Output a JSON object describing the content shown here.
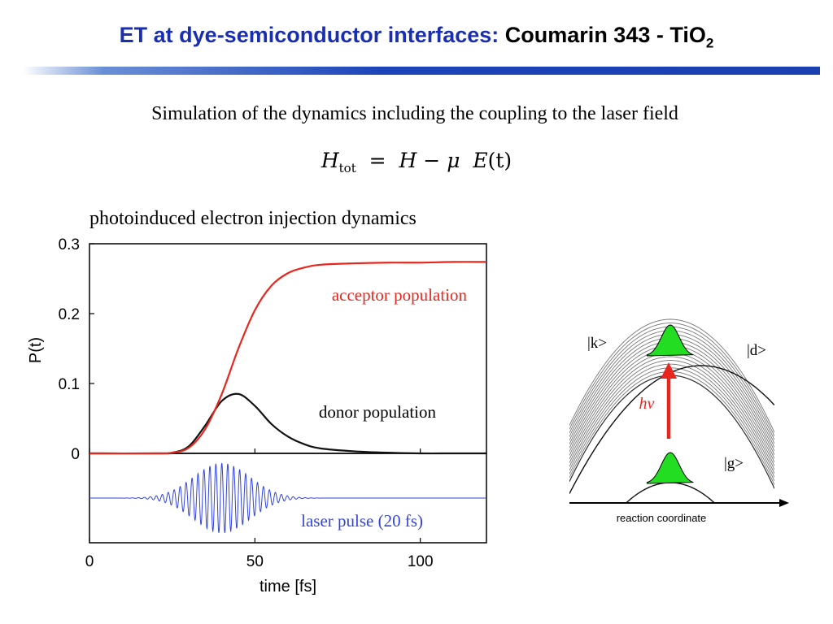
{
  "slide": {
    "title_part1": "ET at dye-semiconductor interfaces:",
    "title_part2": "Coumarin 343 - TiO",
    "title_sub": "2",
    "subtitle": "Simulation of the dynamics including the coupling to the laser field",
    "formula": {
      "lhs": "H",
      "lhs_sub": "tot",
      "equals": "=",
      "rhs_h": "H",
      "minus": "−",
      "mu": "μ",
      "field": "E",
      "arg": "(t)"
    },
    "plot_heading": "photoinduced electron injection dynamics"
  },
  "chart_data": [
    {
      "type": "line",
      "title": "photoinduced electron injection dynamics",
      "xlabel": "time [fs]",
      "ylabel": "P(t)",
      "xlim": [
        0,
        120
      ],
      "ylim": [
        0,
        0.3
      ],
      "x_ticks": [
        "0",
        "50",
        "100"
      ],
      "y_ticks": [
        "0",
        "0.1",
        "0.2",
        "0.3"
      ],
      "series": [
        {
          "name": "acceptor population",
          "color": "#e8261e",
          "x": [
            0,
            20,
            25,
            30,
            35,
            40,
            45,
            50,
            55,
            60,
            65,
            70,
            80,
            90,
            100,
            110,
            120
          ],
          "y": [
            0,
            0,
            0.001,
            0.008,
            0.035,
            0.085,
            0.15,
            0.205,
            0.24,
            0.258,
            0.266,
            0.27,
            0.272,
            0.273,
            0.273,
            0.274,
            0.274
          ]
        },
        {
          "name": "donor population",
          "color": "#111111",
          "x": [
            0,
            20,
            25,
            30,
            35,
            40,
            45,
            50,
            55,
            60,
            65,
            70,
            80,
            90,
            100,
            110,
            120
          ],
          "y": [
            0,
            0,
            0.001,
            0.01,
            0.04,
            0.075,
            0.085,
            0.068,
            0.042,
            0.024,
            0.013,
            0.007,
            0.003,
            0.001,
            0,
            0,
            0
          ]
        }
      ],
      "annotations": [
        "acceptor population",
        "donor population"
      ]
    },
    {
      "type": "line",
      "xlim": [
        0,
        120
      ],
      "series": [
        {
          "name": "laser pulse (20 fs)",
          "color": "#3344dd",
          "center_fs": 40,
          "fwhm_fs": 20,
          "period_fs": 1.8,
          "relative_amplitude": 1.0
        }
      ],
      "annotations": [
        "laser pulse (20 fs)"
      ]
    }
  ],
  "diagram": {
    "state_k": "|k>",
    "state_d": "|d>",
    "state_g": "|g>",
    "excitation_label": "hν",
    "axis_label": "reaction coordinate",
    "arrow_color": "#e8261e",
    "wavepacket_color": "#22dd22"
  }
}
